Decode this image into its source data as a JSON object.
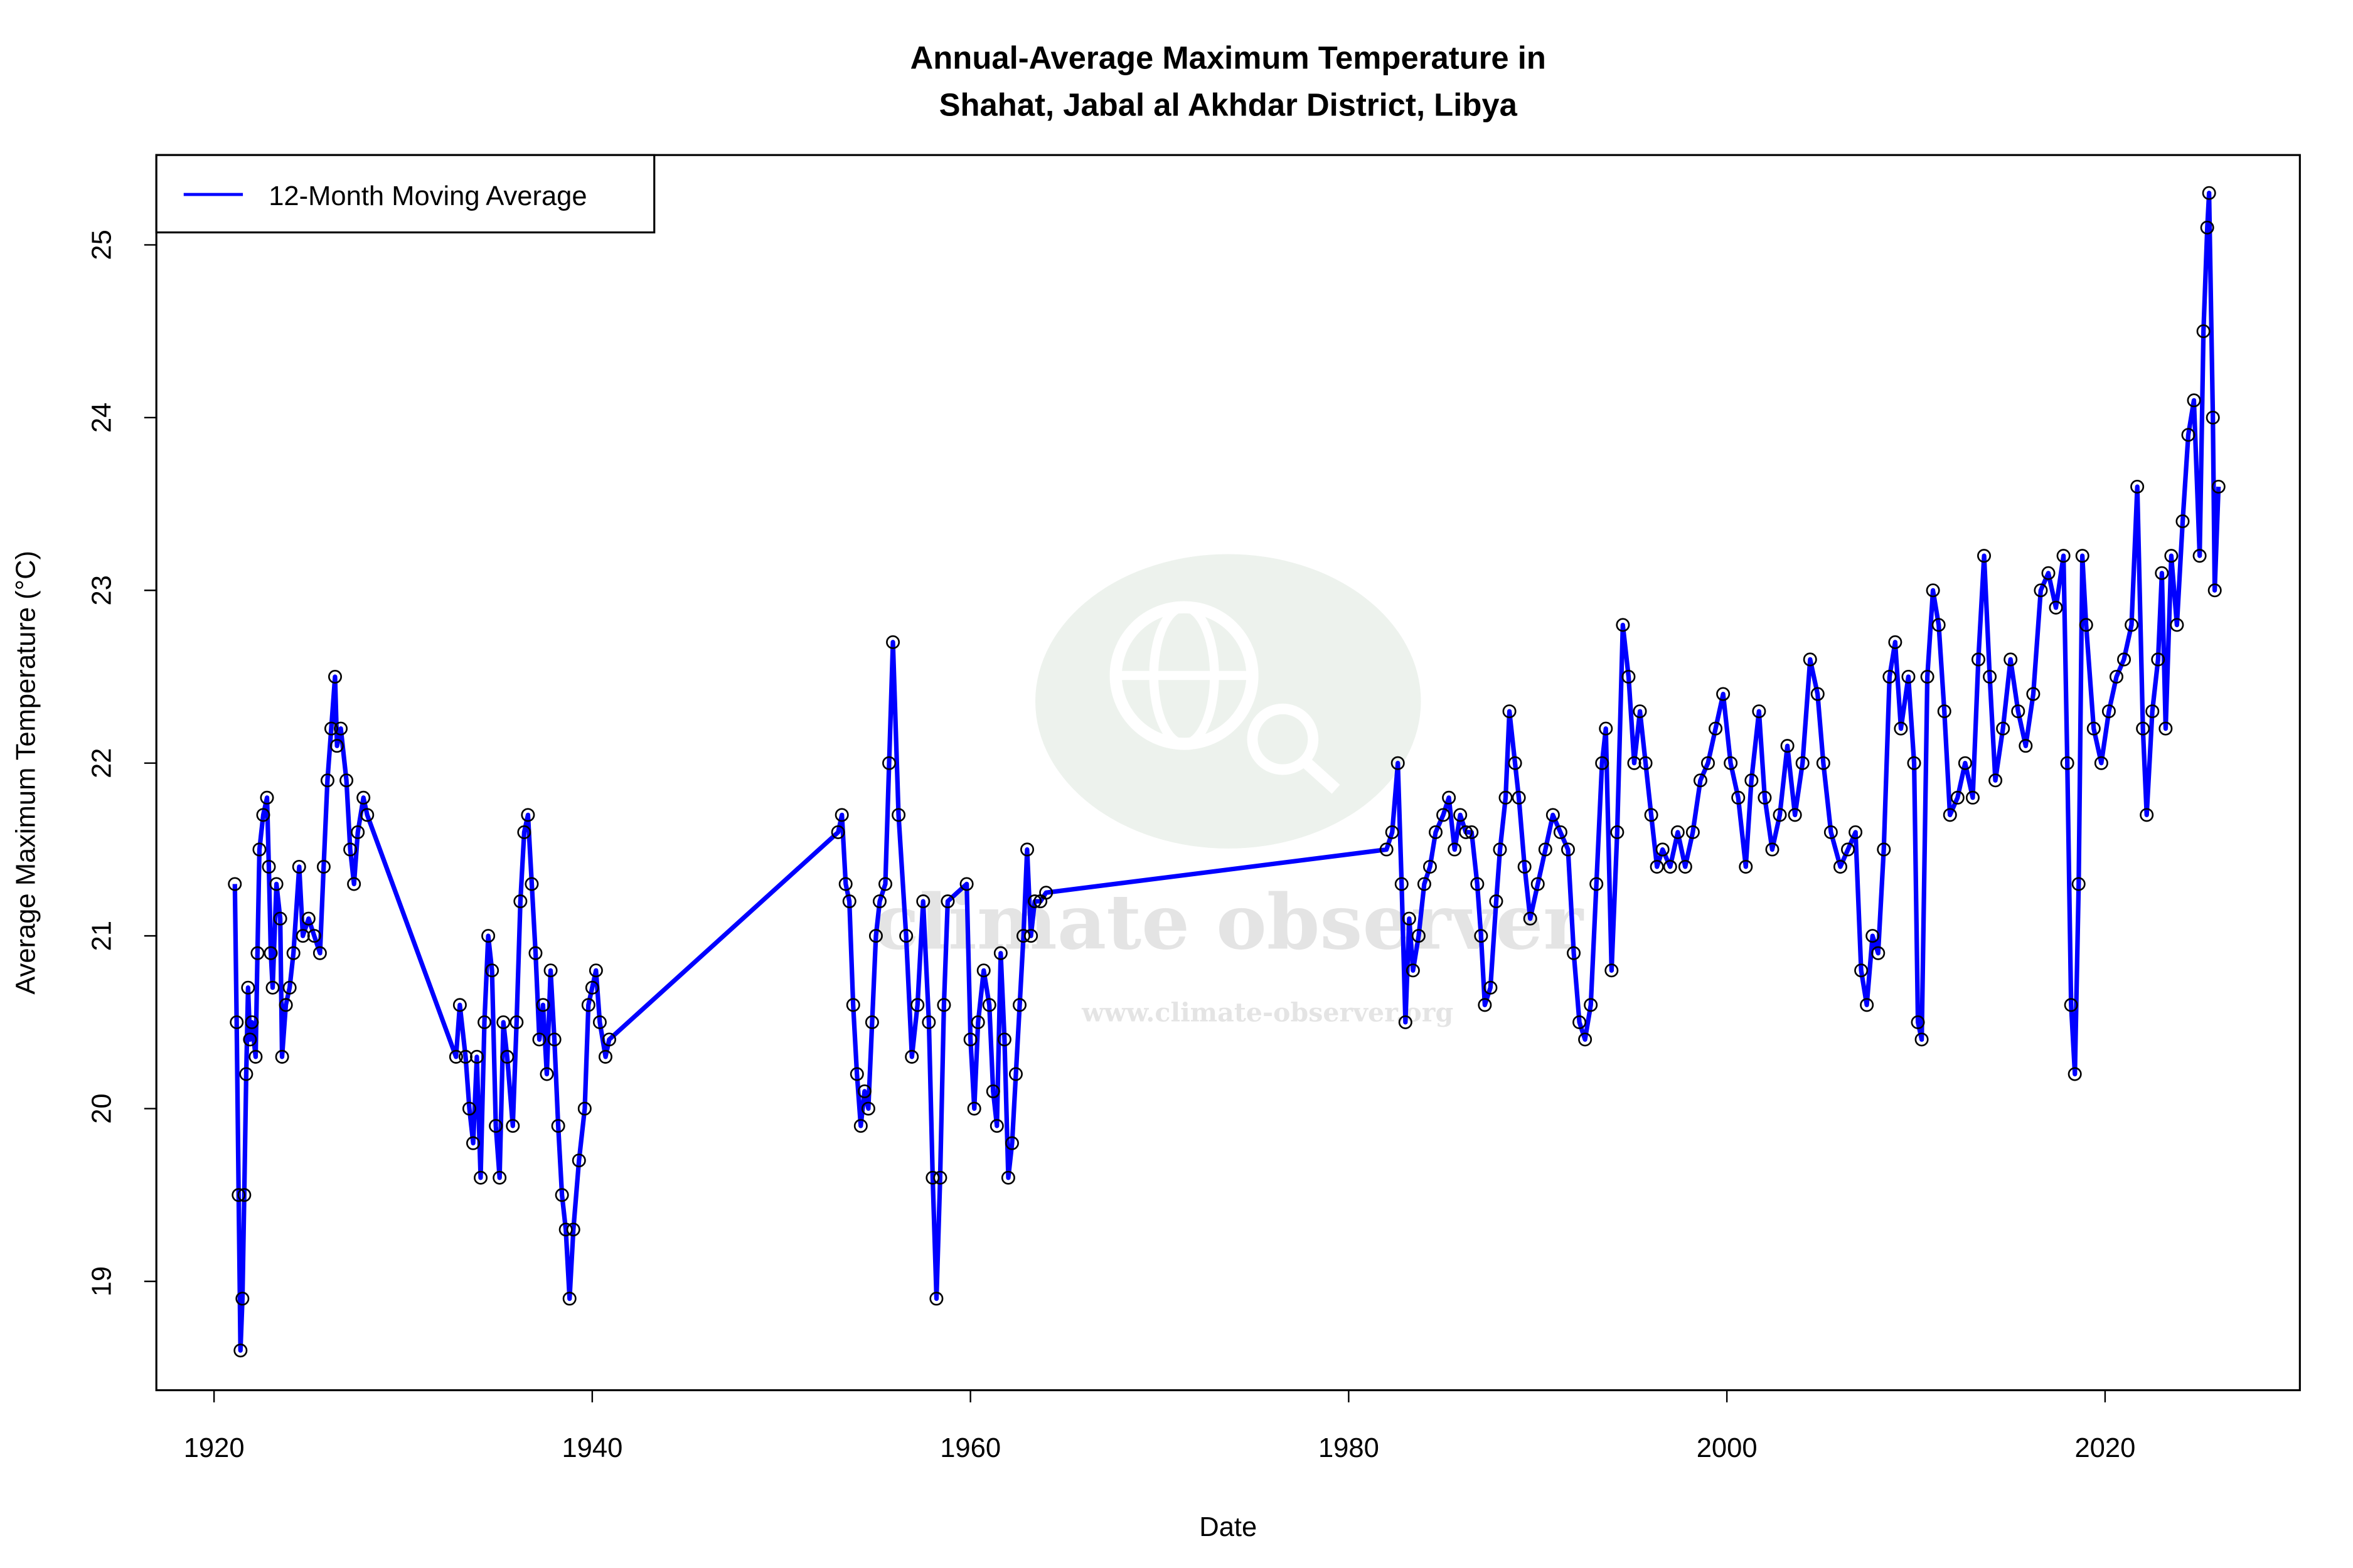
{
  "chart_data": {
    "type": "line",
    "title": "Annual-Average Maximum Temperature in",
    "subtitle": "Shahat, Jabal al Akhdar District, Libya",
    "xlabel": "Date",
    "ylabel": "Average Maximum Temperature (°C)",
    "xlim": [
      1916.95,
      2030.3
    ],
    "ylim": [
      18.37,
      25.52
    ],
    "xticks": [
      1920,
      1940,
      1960,
      1980,
      2000,
      2020
    ],
    "yticks": [
      19,
      20,
      21,
      22,
      23,
      24,
      25
    ],
    "grid": false,
    "legend": {
      "placement": "top-left",
      "entries": [
        "12-Month Moving Average"
      ]
    },
    "colors": {
      "line": "#0000ff",
      "points": "#000000"
    },
    "watermark": {
      "text": "climate observer",
      "url": "www.climate-observer.org"
    },
    "series": [
      {
        "name": "12-Month Moving Average",
        "x": [
          1921.1,
          1921.2,
          1921.3,
          1921.4,
          1921.5,
          1921.6,
          1921.7,
          1921.8,
          1921.9,
          1922.0,
          1922.2,
          1922.3,
          1922.4,
          1922.6,
          1922.8,
          1922.9,
          1923.0,
          1923.1,
          1923.3,
          1923.5,
          1923.6,
          1923.8,
          1924.0,
          1924.2,
          1924.5,
          1924.7,
          1925.0,
          1925.3,
          1925.6,
          1925.8,
          1926.0,
          1926.2,
          1926.4,
          1926.5,
          1926.7,
          1927.0,
          1927.2,
          1927.4,
          1927.6,
          1927.9,
          1928.1,
          1932.8,
          1933.0,
          1933.3,
          1933.5,
          1933.7,
          1933.9,
          1934.1,
          1934.3,
          1934.5,
          1934.7,
          1934.9,
          1935.1,
          1935.3,
          1935.5,
          1935.8,
          1936.0,
          1936.2,
          1936.4,
          1936.6,
          1936.8,
          1937.0,
          1937.2,
          1937.4,
          1937.6,
          1937.8,
          1938.0,
          1938.2,
          1938.4,
          1938.6,
          1938.8,
          1939.0,
          1939.3,
          1939.6,
          1939.8,
          1940.0,
          1940.2,
          1940.4,
          1940.7,
          1940.9,
          1953.0,
          1953.2,
          1953.4,
          1953.6,
          1953.8,
          1954.0,
          1954.2,
          1954.4,
          1954.6,
          1954.8,
          1955.0,
          1955.2,
          1955.5,
          1955.7,
          1955.9,
          1956.2,
          1956.6,
          1956.9,
          1957.2,
          1957.5,
          1957.8,
          1958.0,
          1958.2,
          1958.4,
          1958.6,
          1958.8,
          1959.8,
          1960.0,
          1960.2,
          1960.4,
          1960.7,
          1961.0,
          1961.2,
          1961.4,
          1961.6,
          1961.8,
          1962.0,
          1962.2,
          1962.4,
          1962.6,
          1962.8,
          1963.0,
          1963.2,
          1963.4,
          1963.7,
          1964.0,
          1982.0,
          1982.3,
          1982.6,
          1982.8,
          1983.0,
          1983.2,
          1983.4,
          1983.7,
          1984.0,
          1984.3,
          1984.6,
          1985.0,
          1985.3,
          1985.6,
          1985.9,
          1986.2,
          1986.5,
          1986.8,
          1987.0,
          1987.2,
          1987.5,
          1987.8,
          1988.0,
          1988.3,
          1988.5,
          1988.8,
          1989.0,
          1989.3,
          1989.6,
          1990.0,
          1990.4,
          1990.8,
          1991.2,
          1991.6,
          1991.9,
          1992.2,
          1992.5,
          1992.8,
          1993.1,
          1993.4,
          1993.6,
          1993.9,
          1994.2,
          1994.5,
          1994.8,
          1995.1,
          1995.4,
          1995.7,
          1996.0,
          1996.3,
          1996.6,
          1997.0,
          1997.4,
          1997.8,
          1998.2,
          1998.6,
          1999.0,
          1999.4,
          1999.8,
          2000.2,
          2000.6,
          2001.0,
          2001.3,
          2001.7,
          2002.0,
          2002.4,
          2002.8,
          2003.2,
          2003.6,
          2004.0,
          2004.4,
          2004.8,
          2005.1,
          2005.5,
          2006.0,
          2006.4,
          2006.8,
          2007.1,
          2007.4,
          2007.7,
          2008.0,
          2008.3,
          2008.6,
          2008.9,
          2009.2,
          2009.6,
          2009.9,
          2010.1,
          2010.3,
          2010.6,
          2010.9,
          2011.2,
          2011.5,
          2011.8,
          2012.2,
          2012.6,
          2013.0,
          2013.3,
          2013.6,
          2013.9,
          2014.2,
          2014.6,
          2015.0,
          2015.4,
          2015.8,
          2016.2,
          2016.6,
          2017.0,
          2017.4,
          2017.8,
          2018.0,
          2018.2,
          2018.4,
          2018.6,
          2018.8,
          2019.0,
          2019.4,
          2019.8,
          2020.2,
          2020.6,
          2021.0,
          2021.4,
          2021.7,
          2022.0,
          2022.2,
          2022.5,
          2022.8,
          2023.0,
          2023.2,
          2023.5,
          2023.8,
          2024.1,
          2024.4,
          2024.7,
          2025.0,
          2025.2,
          2025.4,
          2025.5,
          2025.7,
          2025.8,
          2026.0
        ],
        "y": [
          21.3,
          20.5,
          19.5,
          18.6,
          18.9,
          19.5,
          20.2,
          20.7,
          20.4,
          20.5,
          20.3,
          20.9,
          21.5,
          21.7,
          21.8,
          21.4,
          20.9,
          20.7,
          21.3,
          21.1,
          20.3,
          20.6,
          20.7,
          20.9,
          21.4,
          21.0,
          21.1,
          21.0,
          20.9,
          21.4,
          21.9,
          22.2,
          22.5,
          22.1,
          22.2,
          21.9,
          21.5,
          21.3,
          21.6,
          21.8,
          21.7,
          20.3,
          20.6,
          20.3,
          20.0,
          19.8,
          20.3,
          19.6,
          20.5,
          21.0,
          20.8,
          19.9,
          19.6,
          20.5,
          20.3,
          19.9,
          20.5,
          21.2,
          21.6,
          21.7,
          21.3,
          20.9,
          20.4,
          20.6,
          20.2,
          20.8,
          20.4,
          19.9,
          19.5,
          19.3,
          18.9,
          19.3,
          19.7,
          20.0,
          20.6,
          20.7,
          20.8,
          20.5,
          20.3,
          20.4,
          21.6,
          21.7,
          21.3,
          21.2,
          20.6,
          20.2,
          19.9,
          20.1,
          20.0,
          20.5,
          21.0,
          21.2,
          21.3,
          22.0,
          22.7,
          21.7,
          21.0,
          20.3,
          20.6,
          21.2,
          20.5,
          19.6,
          18.9,
          19.6,
          20.6,
          21.2,
          21.3,
          20.4,
          20.0,
          20.5,
          20.8,
          20.6,
          20.1,
          19.9,
          20.9,
          20.4,
          19.6,
          19.8,
          20.2,
          20.6,
          21.0,
          21.5,
          21.0,
          21.2,
          21.2,
          21.25,
          21.5,
          21.6,
          22.0,
          21.3,
          20.5,
          21.1,
          20.8,
          21.0,
          21.3,
          21.4,
          21.6,
          21.7,
          21.8,
          21.5,
          21.7,
          21.6,
          21.6,
          21.3,
          21.0,
          20.6,
          20.7,
          21.2,
          21.5,
          21.8,
          22.3,
          22.0,
          21.8,
          21.4,
          21.1,
          21.3,
          21.5,
          21.7,
          21.6,
          21.5,
          20.9,
          20.5,
          20.4,
          20.6,
          21.3,
          22.0,
          22.2,
          20.8,
          21.6,
          22.8,
          22.5,
          22.0,
          22.3,
          22.0,
          21.7,
          21.4,
          21.5,
          21.4,
          21.6,
          21.4,
          21.6,
          21.9,
          22.0,
          22.2,
          22.4,
          22.0,
          21.8,
          21.4,
          21.9,
          22.3,
          21.8,
          21.5,
          21.7,
          22.1,
          21.7,
          22.0,
          22.6,
          22.4,
          22.0,
          21.6,
          21.4,
          21.5,
          21.6,
          20.8,
          20.6,
          21.0,
          20.9,
          21.5,
          22.5,
          22.7,
          22.2,
          22.5,
          22.0,
          20.5,
          20.4,
          22.5,
          23.0,
          22.8,
          22.3,
          21.7,
          21.8,
          22.0,
          21.8,
          22.6,
          23.2,
          22.5,
          21.9,
          22.2,
          22.6,
          22.3,
          22.1,
          22.4,
          23.0,
          23.1,
          22.9,
          23.2,
          22.0,
          20.6,
          20.2,
          21.3,
          23.2,
          22.8,
          22.2,
          22.0,
          22.3,
          22.5,
          22.6,
          22.8,
          23.6,
          22.2,
          21.7,
          22.3,
          22.6,
          23.1,
          22.2,
          23.2,
          22.8,
          23.4,
          23.9,
          24.1,
          23.2,
          24.5,
          25.1,
          25.3,
          24.0,
          23.0,
          23.6
        ]
      }
    ]
  }
}
